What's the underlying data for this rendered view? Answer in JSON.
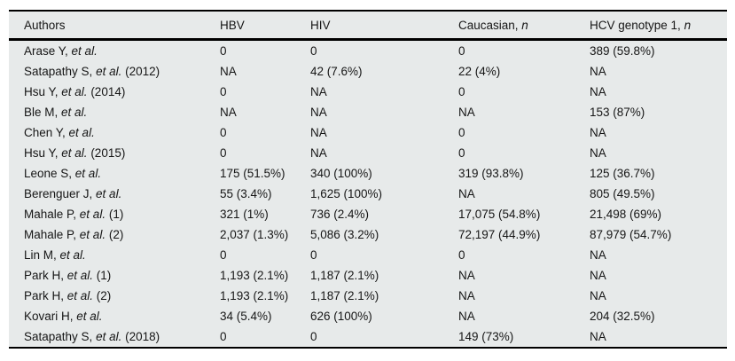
{
  "table": {
    "background_color": "#e7eaea",
    "border_color": "#000000",
    "header": {
      "authors": "Authors",
      "hbv": "HBV",
      "hiv": "HIV",
      "caucasian_prefix": "Caucasian, ",
      "caucasian_italic": "n",
      "hcv_prefix": "HCV genotype 1, ",
      "hcv_italic": "n"
    },
    "rows": [
      {
        "author_pre": "Arase Y, ",
        "author_italic": "et al.",
        "author_post": "",
        "hbv": "0",
        "hiv": "0",
        "caucasian": "0",
        "hcv": "389 (59.8%)"
      },
      {
        "author_pre": "Satapathy S, ",
        "author_italic": "et al.",
        "author_post": " (2012)",
        "hbv": "NA",
        "hiv": "42 (7.6%)",
        "caucasian": "22 (4%)",
        "hcv": "NA"
      },
      {
        "author_pre": "Hsu Y, ",
        "author_italic": "et al.",
        "author_post": " (2014)",
        "hbv": "0",
        "hiv": "NA",
        "caucasian": "0",
        "hcv": "NA"
      },
      {
        "author_pre": "Ble M, ",
        "author_italic": "et al.",
        "author_post": "",
        "hbv": "NA",
        "hiv": "NA",
        "caucasian": "NA",
        "hcv": "153 (87%)"
      },
      {
        "author_pre": "Chen Y, ",
        "author_italic": "et al.",
        "author_post": "",
        "hbv": "0",
        "hiv": "NA",
        "caucasian": "0",
        "hcv": "NA"
      },
      {
        "author_pre": "Hsu Y, ",
        "author_italic": "et al.",
        "author_post": " (2015)",
        "hbv": "0",
        "hiv": "NA",
        "caucasian": "0",
        "hcv": "NA"
      },
      {
        "author_pre": "Leone S, ",
        "author_italic": "et al.",
        "author_post": "",
        "hbv": "175 (51.5%)",
        "hiv": "340 (100%)",
        "caucasian": "319 (93.8%)",
        "hcv": "125 (36.7%)"
      },
      {
        "author_pre": "Berenguer J, ",
        "author_italic": "et al.",
        "author_post": "",
        "hbv": "55 (3.4%)",
        "hiv": "1,625 (100%)",
        "caucasian": "NA",
        "hcv": "805 (49.5%)"
      },
      {
        "author_pre": "Mahale P, ",
        "author_italic": "et al.",
        "author_post": " (1)",
        "hbv": "321 (1%)",
        "hiv": "736 (2.4%)",
        "caucasian": "17,075 (54.8%)",
        "hcv": "21,498 (69%)"
      },
      {
        "author_pre": "Mahale P, ",
        "author_italic": "et al.",
        "author_post": " (2)",
        "hbv": "2,037 (1.3%)",
        "hiv": "5,086 (3.2%)",
        "caucasian": "72,197 (44.9%)",
        "hcv": "87,979 (54.7%)"
      },
      {
        "author_pre": "Lin M, ",
        "author_italic": "et al.",
        "author_post": "",
        "hbv": "0",
        "hiv": "0",
        "caucasian": "0",
        "hcv": "NA"
      },
      {
        "author_pre": "Park H, ",
        "author_italic": "et al.",
        "author_post": " (1)",
        "hbv": "1,193 (2.1%)",
        "hiv": "1,187 (2.1%)",
        "caucasian": "NA",
        "hcv": "NA"
      },
      {
        "author_pre": "Park H, ",
        "author_italic": "et al.",
        "author_post": " (2)",
        "hbv": "1,193 (2.1%)",
        "hiv": "1,187 (2.1%)",
        "caucasian": "NA",
        "hcv": "NA"
      },
      {
        "author_pre": "Kovari H, ",
        "author_italic": "et al.",
        "author_post": "",
        "hbv": "34 (5.4%)",
        "hiv": "626 (100%)",
        "caucasian": "NA",
        "hcv": "204 (32.5%)"
      },
      {
        "author_pre": "Satapathy S, ",
        "author_italic": "et al.",
        "author_post": " (2018)",
        "hbv": "0",
        "hiv": "0",
        "caucasian": "149 (73%)",
        "hcv": "NA"
      }
    ]
  }
}
